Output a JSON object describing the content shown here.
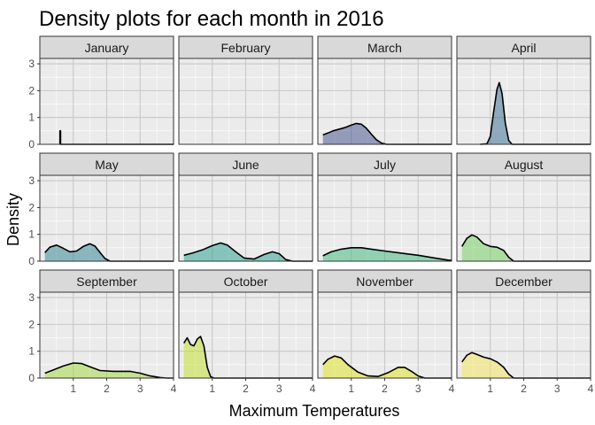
{
  "chart_data": {
    "type": "area",
    "title": "Density plots for each month in 2016",
    "xlabel": "Maximum Temperatures",
    "ylabel": "Density",
    "xlim": [
      0,
      4
    ],
    "ylim": [
      0,
      3.2
    ],
    "x_ticks": [
      1,
      2,
      3,
      4
    ],
    "y_ticks": [
      0,
      1,
      2,
      3
    ],
    "grid": true,
    "panels": [
      {
        "name": "January",
        "color": "#440154",
        "points": [
          [
            0.6,
            0
          ],
          [
            0.6,
            0.5
          ],
          [
            0.62,
            0.5
          ],
          [
            0.62,
            0
          ],
          [
            4,
            0
          ]
        ]
      },
      {
        "name": "February",
        "color": "#482878",
        "points": []
      },
      {
        "name": "March",
        "color": "#3E4A89",
        "points": [
          [
            0.15,
            0.35
          ],
          [
            0.3,
            0.42
          ],
          [
            0.45,
            0.5
          ],
          [
            0.6,
            0.55
          ],
          [
            0.8,
            0.62
          ],
          [
            1.0,
            0.72
          ],
          [
            1.15,
            0.78
          ],
          [
            1.3,
            0.75
          ],
          [
            1.45,
            0.6
          ],
          [
            1.6,
            0.38
          ],
          [
            1.75,
            0.17
          ],
          [
            1.9,
            0.05
          ],
          [
            2.05,
            0
          ],
          [
            4,
            0
          ]
        ]
      },
      {
        "name": "April",
        "color": "#31688E",
        "points": [
          [
            0.7,
            0
          ],
          [
            0.9,
            0.02
          ],
          [
            1.0,
            0.3
          ],
          [
            1.1,
            1.2
          ],
          [
            1.2,
            2.05
          ],
          [
            1.27,
            2.3
          ],
          [
            1.35,
            1.9
          ],
          [
            1.45,
            0.8
          ],
          [
            1.55,
            0.15
          ],
          [
            1.65,
            0
          ],
          [
            4,
            0
          ]
        ]
      },
      {
        "name": "May",
        "color": "#26828E",
        "points": [
          [
            0.15,
            0.32
          ],
          [
            0.3,
            0.52
          ],
          [
            0.5,
            0.6
          ],
          [
            0.7,
            0.48
          ],
          [
            0.9,
            0.35
          ],
          [
            1.1,
            0.38
          ],
          [
            1.3,
            0.55
          ],
          [
            1.5,
            0.65
          ],
          [
            1.65,
            0.56
          ],
          [
            1.8,
            0.32
          ],
          [
            1.95,
            0.1
          ],
          [
            2.1,
            0
          ],
          [
            4,
            0
          ]
        ]
      },
      {
        "name": "June",
        "color": "#1F9E89",
        "points": [
          [
            0.15,
            0.22
          ],
          [
            0.4,
            0.3
          ],
          [
            0.7,
            0.42
          ],
          [
            1.0,
            0.58
          ],
          [
            1.25,
            0.68
          ],
          [
            1.45,
            0.6
          ],
          [
            1.7,
            0.35
          ],
          [
            1.95,
            0.12
          ],
          [
            2.25,
            0.08
          ],
          [
            2.55,
            0.25
          ],
          [
            2.8,
            0.35
          ],
          [
            3.0,
            0.28
          ],
          [
            3.2,
            0.06
          ],
          [
            3.4,
            0
          ],
          [
            4,
            0
          ]
        ]
      },
      {
        "name": "July",
        "color": "#35B779",
        "points": [
          [
            0.15,
            0.2
          ],
          [
            0.4,
            0.35
          ],
          [
            0.7,
            0.45
          ],
          [
            1.0,
            0.5
          ],
          [
            1.3,
            0.5
          ],
          [
            1.6,
            0.45
          ],
          [
            2.0,
            0.38
          ],
          [
            2.5,
            0.3
          ],
          [
            3.0,
            0.22
          ],
          [
            3.5,
            0.12
          ],
          [
            3.9,
            0.04
          ],
          [
            4,
            0.03
          ]
        ]
      },
      {
        "name": "August",
        "color": "#6DCD59",
        "points": [
          [
            0.15,
            0.55
          ],
          [
            0.3,
            0.85
          ],
          [
            0.45,
            0.98
          ],
          [
            0.6,
            0.9
          ],
          [
            0.8,
            0.65
          ],
          [
            1.0,
            0.55
          ],
          [
            1.2,
            0.52
          ],
          [
            1.4,
            0.4
          ],
          [
            1.55,
            0.15
          ],
          [
            1.7,
            0
          ],
          [
            4,
            0
          ]
        ]
      },
      {
        "name": "September",
        "color": "#A0DA39",
        "points": [
          [
            0.15,
            0.18
          ],
          [
            0.4,
            0.3
          ],
          [
            0.7,
            0.45
          ],
          [
            1.0,
            0.56
          ],
          [
            1.25,
            0.54
          ],
          [
            1.5,
            0.42
          ],
          [
            1.8,
            0.28
          ],
          [
            2.2,
            0.25
          ],
          [
            2.7,
            0.25
          ],
          [
            3.0,
            0.18
          ],
          [
            3.3,
            0.08
          ],
          [
            3.6,
            0.02
          ],
          [
            3.8,
            0
          ],
          [
            4,
            0
          ]
        ]
      },
      {
        "name": "October",
        "color": "#C2DF23",
        "points": [
          [
            0.15,
            1.3
          ],
          [
            0.25,
            1.5
          ],
          [
            0.35,
            1.25
          ],
          [
            0.45,
            1.2
          ],
          [
            0.55,
            1.45
          ],
          [
            0.65,
            1.55
          ],
          [
            0.75,
            1.2
          ],
          [
            0.85,
            0.4
          ],
          [
            0.95,
            0.05
          ],
          [
            1.05,
            0
          ],
          [
            4,
            0
          ]
        ]
      },
      {
        "name": "November",
        "color": "#E0E318",
        "points": [
          [
            0.15,
            0.5
          ],
          [
            0.3,
            0.7
          ],
          [
            0.5,
            0.82
          ],
          [
            0.7,
            0.75
          ],
          [
            0.9,
            0.5
          ],
          [
            1.2,
            0.22
          ],
          [
            1.5,
            0.08
          ],
          [
            1.8,
            0.06
          ],
          [
            2.1,
            0.2
          ],
          [
            2.4,
            0.4
          ],
          [
            2.6,
            0.4
          ],
          [
            2.8,
            0.25
          ],
          [
            3.0,
            0.08
          ],
          [
            3.2,
            0
          ],
          [
            4,
            0
          ]
        ]
      },
      {
        "name": "December",
        "color": "#F6E455",
        "points": [
          [
            0.15,
            0.6
          ],
          [
            0.3,
            0.85
          ],
          [
            0.45,
            0.95
          ],
          [
            0.6,
            0.88
          ],
          [
            0.8,
            0.78
          ],
          [
            1.0,
            0.72
          ],
          [
            1.2,
            0.6
          ],
          [
            1.4,
            0.4
          ],
          [
            1.55,
            0.15
          ],
          [
            1.7,
            0
          ],
          [
            4,
            0
          ]
        ]
      }
    ]
  }
}
